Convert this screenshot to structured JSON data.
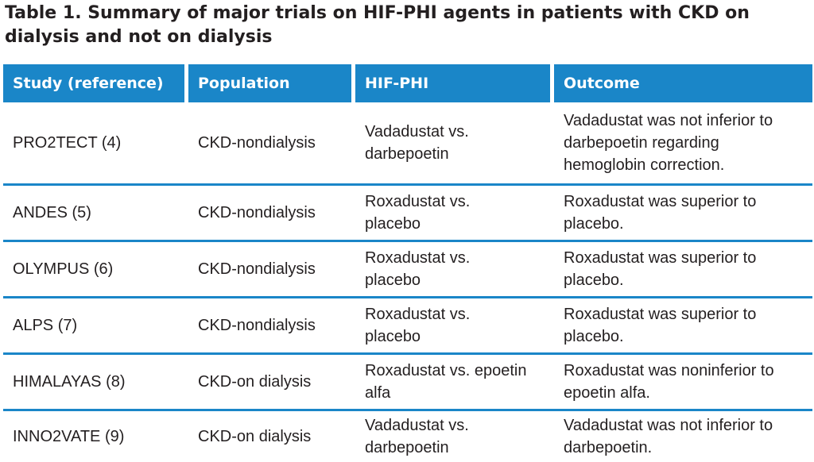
{
  "document": {
    "title_line1": "Table 1. Summary of major trials on HIF-PHI agents in patients with CKD on",
    "title_line2": "dialysis and not on dialysis"
  },
  "table": {
    "headers": [
      "Study (reference)",
      "Population",
      "HIF-PHI",
      "Outcome"
    ],
    "rows": [
      {
        "study": "PRO2TECT (4)",
        "population": "CKD-nondialysis",
        "hif_phi": "Vadadustat vs. darbepoetin",
        "outcome": "Vadadustat was not inferior to darbepoetin regarding hemoglobin correction."
      },
      {
        "study": "ANDES (5)",
        "population": "CKD-nondialysis",
        "hif_phi": "Roxadustat vs. placebo",
        "outcome": "Roxadustat was superior to placebo."
      },
      {
        "study": "OLYMPUS (6)",
        "population": "CKD-nondialysis",
        "hif_phi": "Roxadustat vs. placebo",
        "outcome": "Roxadustat was superior to placebo."
      },
      {
        "study": "ALPS (7)",
        "population": "CKD-nondialysis",
        "hif_phi": "Roxadustat vs. placebo",
        "outcome": "Roxadustat was superior to placebo."
      },
      {
        "study": "HIMALAYAS (8)",
        "population": "CKD-on dialysis",
        "hif_phi": "Roxadustat vs. epoetin alfa",
        "outcome": "Roxadustat was noninferior to epoetin alfa."
      },
      {
        "study": "INNO2VATE (9)",
        "population": "CKD-on dialysis",
        "hif_phi": "Vadadustat vs. darbepoetin",
        "outcome": "Vadadustat was not inferior to darbepoetin."
      }
    ]
  },
  "colors": {
    "header_bg": "#1a86c8",
    "header_text": "#ffffff",
    "body_text": "#231f20",
    "rule": "#1a86c8"
  }
}
